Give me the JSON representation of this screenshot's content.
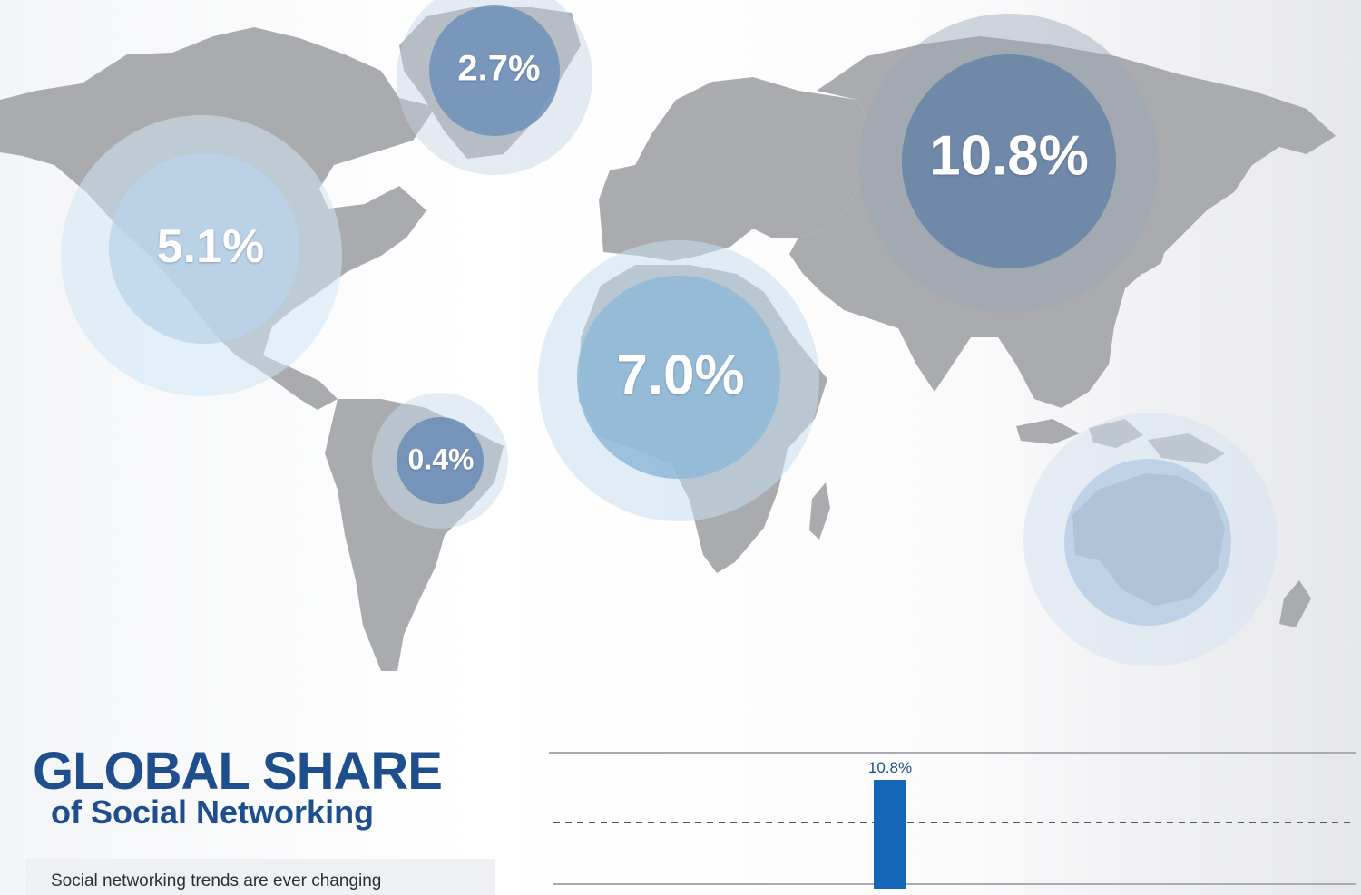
{
  "map": {
    "land_color": "#a9abae",
    "bubbles": [
      {
        "id": "greenland",
        "label": "2.7%",
        "value": 2.7,
        "color": "#6f8fb8"
      },
      {
        "id": "north-america",
        "label": "5.1%",
        "value": 5.1,
        "color": "#b9d3ea"
      },
      {
        "id": "russia",
        "label": "10.8%",
        "value": 10.8,
        "color": "#6e87a8"
      },
      {
        "id": "africa",
        "label": "7.0%",
        "value": 7.0,
        "color": "#8fb8d8"
      },
      {
        "id": "south-america",
        "label": "0.4%",
        "value": 0.4,
        "color": "#6f8fb8"
      },
      {
        "id": "australia",
        "label": "",
        "value": null,
        "color": "#a9c2de"
      }
    ]
  },
  "heading": {
    "title": "GLOBAL SHARE",
    "subtitle": "of Social Networking"
  },
  "intro": {
    "text": "Social networking trends are ever changing"
  },
  "chart_data": {
    "type": "bar",
    "values": [
      10.8
    ],
    "data_labels": [
      "10.8%"
    ],
    "bar_color": "#1565b8",
    "grid": true
  }
}
